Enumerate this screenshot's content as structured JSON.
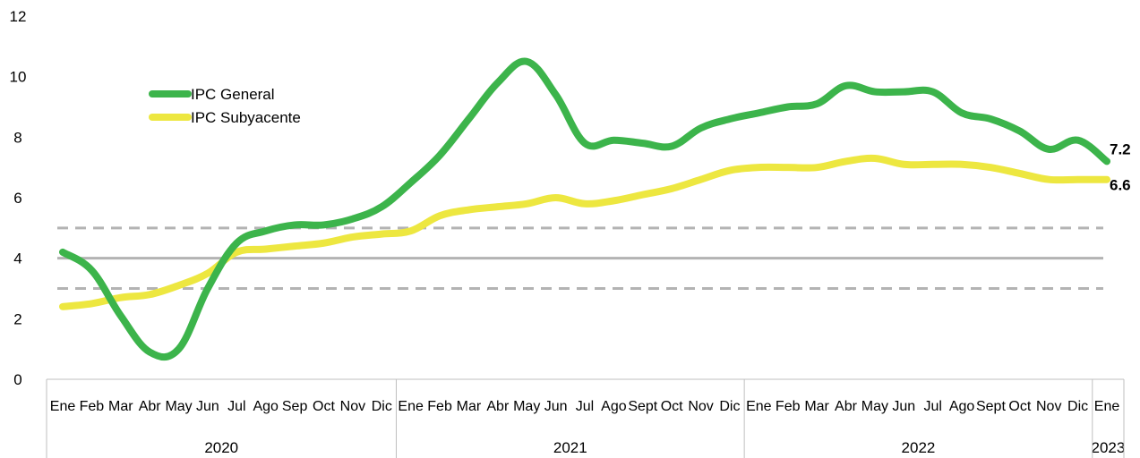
{
  "chart_data": {
    "type": "line",
    "title": "",
    "xlabel": "",
    "ylabel": "",
    "ylim": [
      0,
      12
    ],
    "yticks": [
      0,
      2,
      4,
      6,
      8,
      10,
      12
    ],
    "grid": false,
    "legend_placement": "top-left",
    "categories": [
      "Ene",
      "Feb",
      "Mar",
      "Abr",
      "May",
      "Jun",
      "Jul",
      "Ago",
      "Sep",
      "Oct",
      "Nov",
      "Dic",
      "Ene",
      "Feb",
      "Mar",
      "Abr",
      "May",
      "Jun",
      "Jul",
      "Ago",
      "Sept",
      "Oct",
      "Nov",
      "Dic",
      "Ene",
      "Feb",
      "Mar",
      "Abr",
      "May",
      "Jun",
      "Jul",
      "Ago",
      "Sept",
      "Oct",
      "Nov",
      "Dic",
      "Ene"
    ],
    "year_groups": [
      {
        "label": "2020",
        "start": 0,
        "end": 11
      },
      {
        "label": "2021",
        "start": 12,
        "end": 23
      },
      {
        "label": "2022",
        "start": 24,
        "end": 35
      },
      {
        "label": "2023",
        "start": 36,
        "end": 36
      }
    ],
    "series": [
      {
        "name": "IPC General",
        "color": "#3cb44b",
        "values": [
          4.2,
          3.6,
          2.1,
          0.9,
          1.0,
          3.0,
          4.5,
          4.9,
          5.1,
          5.1,
          5.3,
          5.7,
          6.5,
          7.4,
          8.6,
          9.8,
          10.5,
          9.4,
          7.8,
          7.9,
          7.8,
          7.7,
          8.3,
          8.6,
          8.8,
          9.0,
          9.1,
          9.7,
          9.5,
          9.5,
          9.5,
          8.8,
          8.6,
          8.2,
          7.6,
          7.9,
          7.2
        ],
        "end_label": "7.2"
      },
      {
        "name": "IPC Subyacente",
        "color": "#ede740",
        "values": [
          2.4,
          2.5,
          2.7,
          2.8,
          3.1,
          3.5,
          4.2,
          4.3,
          4.4,
          4.5,
          4.7,
          4.8,
          4.9,
          5.4,
          5.6,
          5.7,
          5.8,
          6.0,
          5.8,
          5.9,
          6.1,
          6.3,
          6.6,
          6.9,
          7.0,
          7.0,
          7.0,
          7.2,
          7.3,
          7.1,
          7.1,
          7.1,
          7.0,
          6.8,
          6.6,
          6.6,
          6.6
        ],
        "end_label": "6.6"
      }
    ],
    "reference_lines": [
      {
        "value": 4,
        "style": "solid",
        "color": "#b3b3b3"
      },
      {
        "value": 3,
        "style": "dashed",
        "color": "#b3b3b3"
      },
      {
        "value": 5,
        "style": "dashed",
        "color": "#b3b3b3"
      }
    ]
  }
}
